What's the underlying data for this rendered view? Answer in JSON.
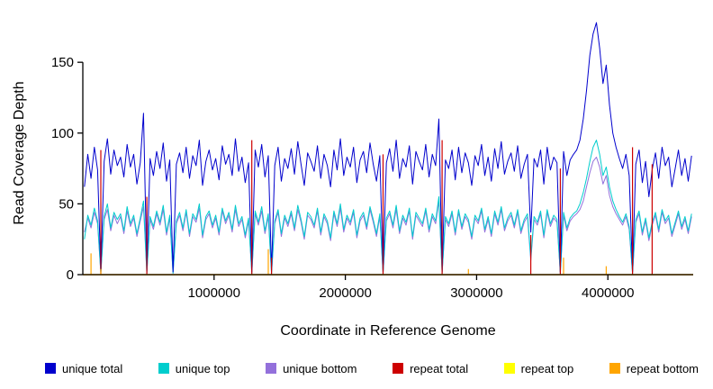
{
  "figure": {
    "background": "#FFFFFF",
    "text_color": "#000000"
  },
  "chart_data": {
    "type": "line",
    "title": "",
    "xlabel": "Coordinate in Reference Genome",
    "ylabel": "Read Coverage Depth",
    "xlim": [
      0,
      4650000
    ],
    "ylim": [
      0,
      180
    ],
    "grid": false,
    "legend_position": "bottom",
    "x_ticks": [
      {
        "value": 1000000,
        "label": "1000000"
      },
      {
        "value": 2000000,
        "label": "2000000"
      },
      {
        "value": 3000000,
        "label": "3000000"
      },
      {
        "value": 4000000,
        "label": "4000000"
      }
    ],
    "y_ticks": [
      {
        "value": 0,
        "label": "0"
      },
      {
        "value": 50,
        "label": "50"
      },
      {
        "value": 100,
        "label": "100"
      },
      {
        "value": 150,
        "label": "150"
      }
    ],
    "x_start": 12500,
    "x_step": 25000,
    "draw_order": [
      2,
      1,
      0,
      3,
      4,
      5
    ],
    "series": [
      {
        "name": "unique total",
        "color": "#0000CD",
        "kind": "line",
        "values": [
          62,
          85,
          68,
          90,
          74,
          2,
          80,
          96,
          71,
          88,
          77,
          83,
          69,
          92,
          76,
          85,
          64,
          79,
          114,
          3,
          82,
          70,
          87,
          75,
          93,
          66,
          81,
          2,
          78,
          86,
          72,
          90,
          68,
          84,
          77,
          95,
          63,
          80,
          88,
          74,
          82,
          67,
          91,
          78,
          85,
          70,
          96,
          73,
          83,
          65,
          79,
          2,
          88,
          76,
          92,
          69,
          84,
          3,
          77,
          90,
          66,
          82,
          75,
          89,
          71,
          94,
          78,
          63,
          86,
          80,
          73,
          91,
          68,
          85,
          77,
          62,
          88,
          74,
          96,
          70,
          83,
          76,
          90,
          65,
          81,
          87,
          72,
          93,
          78,
          66,
          84,
          2,
          79,
          89,
          73,
          95,
          68,
          82,
          76,
          91,
          64,
          87,
          80,
          74,
          92,
          69,
          85,
          77,
          110,
          2,
          81,
          75,
          88,
          67,
          90,
          72,
          86,
          79,
          63,
          84,
          77,
          92,
          70,
          83,
          66,
          89,
          75,
          94,
          71,
          80,
          86,
          73,
          91,
          68,
          78,
          85,
          30,
          82,
          76,
          88,
          64,
          90,
          74,
          83,
          79,
          2,
          87,
          70,
          81,
          85,
          88,
          95,
          110,
          130,
          155,
          170,
          178,
          160,
          135,
          148,
          120,
          100,
          90,
          82,
          75,
          85,
          70,
          2,
          78,
          88,
          65,
          80,
          55,
          74,
          86,
          68,
          90,
          77,
          83,
          62,
          75,
          88,
          70,
          82,
          66,
          84
        ]
      },
      {
        "name": "unique top",
        "color": "#00CDCD",
        "kind": "line",
        "values": [
          25,
          42,
          35,
          47,
          38,
          1,
          41,
          50,
          33,
          44,
          39,
          43,
          31,
          48,
          36,
          42,
          29,
          40,
          52,
          1,
          41,
          34,
          45,
          37,
          49,
          30,
          42,
          1,
          38,
          44,
          33,
          46,
          29,
          43,
          39,
          50,
          28,
          41,
          45,
          35,
          42,
          30,
          47,
          38,
          44,
          32,
          49,
          36,
          41,
          28,
          40,
          1,
          45,
          37,
          48,
          31,
          43,
          1,
          38,
          46,
          29,
          42,
          36,
          45,
          33,
          49,
          39,
          27,
          44,
          41,
          35,
          47,
          30,
          43,
          38,
          26,
          45,
          36,
          50,
          32,
          42,
          37,
          46,
          28,
          40,
          44,
          34,
          48,
          39,
          29,
          43,
          1,
          40,
          45,
          35,
          49,
          31,
          42,
          37,
          47,
          27,
          44,
          40,
          36,
          47,
          32,
          43,
          38,
          55,
          1,
          41,
          36,
          45,
          30,
          46,
          34,
          43,
          39,
          27,
          42,
          38,
          47,
          32,
          41,
          29,
          45,
          37,
          48,
          33,
          40,
          44,
          35,
          46,
          31,
          39,
          43,
          12,
          41,
          37,
          45,
          28,
          46,
          36,
          42,
          39,
          1,
          44,
          33,
          40,
          43,
          45,
          50,
          58,
          68,
          80,
          90,
          95,
          85,
          70,
          76,
          62,
          52,
          46,
          41,
          37,
          43,
          34,
          1,
          39,
          45,
          30,
          40,
          26,
          37,
          44,
          32,
          46,
          38,
          42,
          29,
          37,
          45,
          34,
          41,
          31,
          43
        ]
      },
      {
        "name": "unique bottom",
        "color": "#9370DB",
        "kind": "line",
        "values": [
          30,
          40,
          33,
          44,
          36,
          1,
          39,
          46,
          31,
          42,
          36,
          41,
          29,
          45,
          34,
          40,
          27,
          38,
          48,
          1,
          39,
          32,
          43,
          35,
          46,
          28,
          40,
          1,
          36,
          42,
          31,
          44,
          27,
          41,
          37,
          47,
          26,
          39,
          43,
          33,
          40,
          28,
          45,
          36,
          42,
          30,
          46,
          34,
          39,
          26,
          38,
          1,
          43,
          35,
          45,
          29,
          41,
          1,
          36,
          44,
          27,
          40,
          34,
          43,
          31,
          46,
          37,
          25,
          42,
          39,
          33,
          45,
          28,
          41,
          36,
          24,
          43,
          34,
          47,
          30,
          40,
          35,
          44,
          26,
          38,
          42,
          32,
          46,
          37,
          27,
          41,
          1,
          38,
          43,
          33,
          46,
          29,
          40,
          35,
          45,
          25,
          42,
          38,
          34,
          45,
          30,
          41,
          36,
          52,
          1,
          39,
          34,
          43,
          28,
          44,
          32,
          41,
          37,
          25,
          40,
          36,
          45,
          30,
          39,
          27,
          43,
          35,
          46,
          31,
          38,
          42,
          33,
          44,
          29,
          37,
          41,
          10,
          39,
          35,
          43,
          26,
          44,
          34,
          40,
          37,
          1,
          42,
          31,
          38,
          41,
          43,
          46,
          52,
          62,
          72,
          80,
          83,
          76,
          64,
          70,
          56,
          48,
          43,
          39,
          35,
          41,
          32,
          1,
          37,
          43,
          28,
          38,
          24,
          35,
          42,
          30,
          44,
          36,
          40,
          27,
          35,
          43,
          32,
          39,
          29,
          41
        ]
      },
      {
        "name": "repeat total",
        "color": "#CD0000",
        "kind": "baseline-spikes",
        "baseline": 0,
        "spikes": [
          [
            137500,
            88
          ],
          [
            487500,
            55
          ],
          [
            1287500,
            95
          ],
          [
            1437500,
            12
          ],
          [
            2287500,
            85
          ],
          [
            2737500,
            95
          ],
          [
            3412500,
            28
          ],
          [
            3637500,
            75
          ],
          [
            4187500,
            90
          ],
          [
            4337500,
            78
          ]
        ]
      },
      {
        "name": "repeat top",
        "color": "#FFFF00",
        "kind": "baseline-spikes",
        "baseline": 0,
        "spikes": []
      },
      {
        "name": "repeat bottom",
        "color": "#FFA500",
        "kind": "baseline-spikes",
        "baseline": 0,
        "spikes": [
          [
            62500,
            15
          ],
          [
            137500,
            4
          ],
          [
            1412500,
            18
          ],
          [
            2937500,
            4
          ],
          [
            3662500,
            12
          ],
          [
            3987500,
            6
          ]
        ]
      }
    ],
    "legend": [
      {
        "label": "unique total",
        "color": "#0000CD"
      },
      {
        "label": "unique top",
        "color": "#00CDCD"
      },
      {
        "label": "unique bottom",
        "color": "#9370DB"
      },
      {
        "label": "repeat total",
        "color": "#CD0000"
      },
      {
        "label": "repeat top",
        "color": "#FFFF00"
      },
      {
        "label": "repeat bottom",
        "color": "#FFA500"
      }
    ]
  }
}
